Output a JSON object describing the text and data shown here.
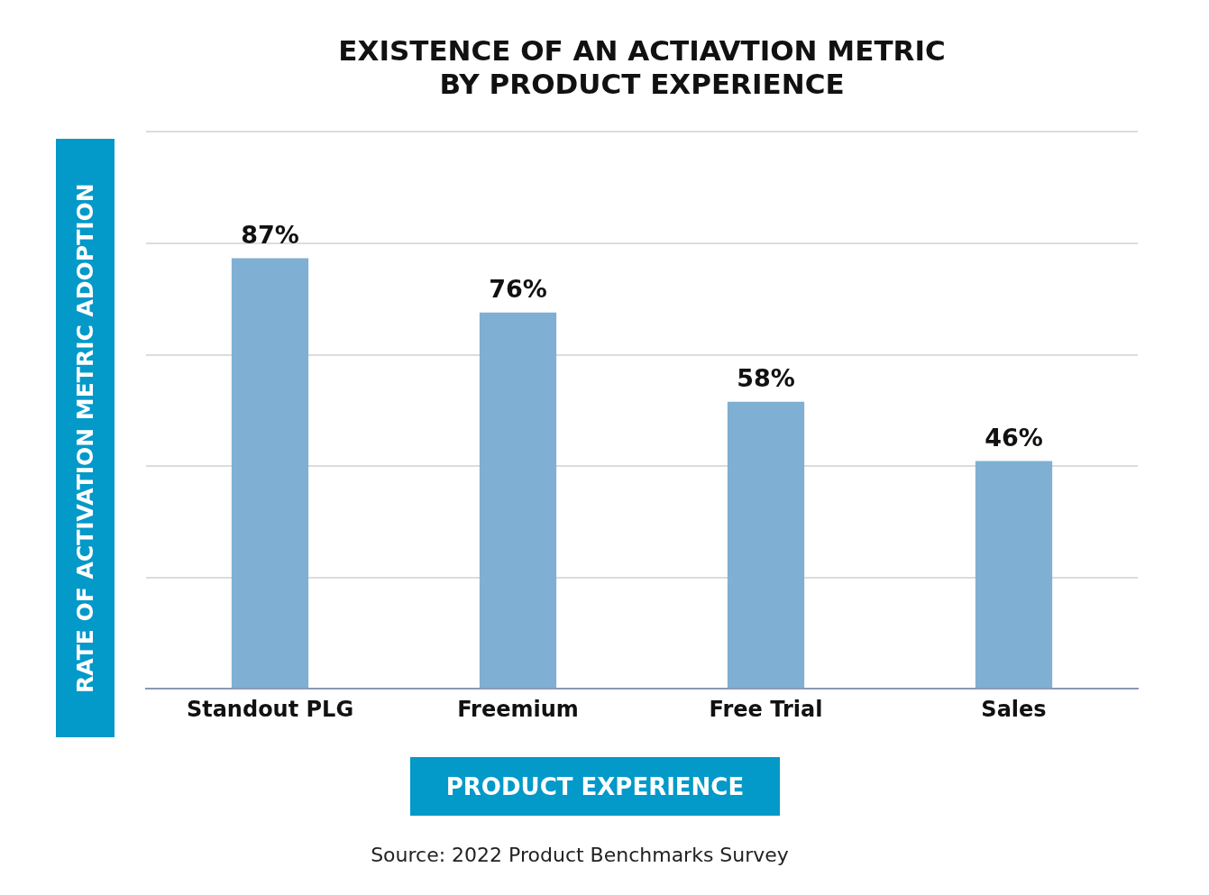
{
  "chart_data": {
    "type": "bar",
    "title": "EXISTENCE OF AN ACTIAVTION METRIC\nBY PRODUCT EXPERIENCE",
    "xlabel": "PRODUCT EXPERIENCE",
    "ylabel": "RATE OF ACTIVATION METRIC ADOPTION",
    "categories": [
      "Standout PLG",
      "Freemium",
      "Free Trial",
      "Sales"
    ],
    "values": [
      87,
      76,
      58,
      46
    ],
    "color": "#7fafd3",
    "value_labels": [
      "87%",
      "76%",
      "58%",
      "46%"
    ],
    "relative": false,
    "ylim": [
      0,
      112.5
    ],
    "yticks": [
      {
        "value": 0,
        "label": null
      },
      {
        "value": 22.5,
        "label": null
      },
      {
        "value": 45,
        "label": null
      },
      {
        "value": 67.5,
        "label": null
      },
      {
        "value": 90,
        "label": null
      },
      {
        "value": 112.5,
        "label": null
      }
    ],
    "tick_labels": "x",
    "grid": "y",
    "legend": false,
    "annotations": [
      "Source: 2022 Product Benchmarks Survey"
    ]
  }
}
